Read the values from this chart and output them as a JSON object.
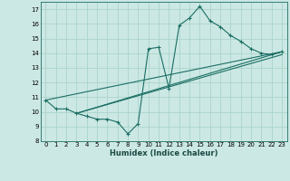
{
  "title": "",
  "xlabel": "Humidex (Indice chaleur)",
  "bg_color": "#cce8e4",
  "grid_color": "#aad4cc",
  "line_color": "#1a6e64",
  "xlim": [
    -0.5,
    23.5
  ],
  "ylim": [
    8,
    17.5
  ],
  "xticks": [
    0,
    1,
    2,
    3,
    4,
    5,
    6,
    7,
    8,
    9,
    10,
    11,
    12,
    13,
    14,
    15,
    16,
    17,
    18,
    19,
    20,
    21,
    22,
    23
  ],
  "yticks": [
    8,
    9,
    10,
    11,
    12,
    13,
    14,
    15,
    16,
    17
  ],
  "series": [
    [
      0,
      10.8
    ],
    [
      1,
      10.2
    ],
    [
      2,
      10.2
    ],
    [
      3,
      9.9
    ],
    [
      4,
      9.7
    ],
    [
      5,
      9.5
    ],
    [
      6,
      9.5
    ],
    [
      7,
      9.3
    ],
    [
      8,
      8.5
    ],
    [
      9,
      9.2
    ],
    [
      10,
      14.3
    ],
    [
      11,
      14.4
    ],
    [
      12,
      11.6
    ],
    [
      13,
      15.9
    ],
    [
      14,
      16.4
    ],
    [
      15,
      17.2
    ],
    [
      16,
      16.2
    ],
    [
      17,
      15.8
    ],
    [
      18,
      15.2
    ],
    [
      19,
      14.8
    ],
    [
      20,
      14.3
    ],
    [
      21,
      14.0
    ],
    [
      22,
      13.9
    ],
    [
      23,
      14.1
    ]
  ],
  "line2": [
    [
      0,
      10.8
    ],
    [
      23,
      14.1
    ]
  ],
  "line3": [
    [
      3,
      9.9
    ],
    [
      23,
      14.1
    ]
  ],
  "line4": [
    [
      3,
      9.9
    ],
    [
      23,
      13.9
    ]
  ]
}
